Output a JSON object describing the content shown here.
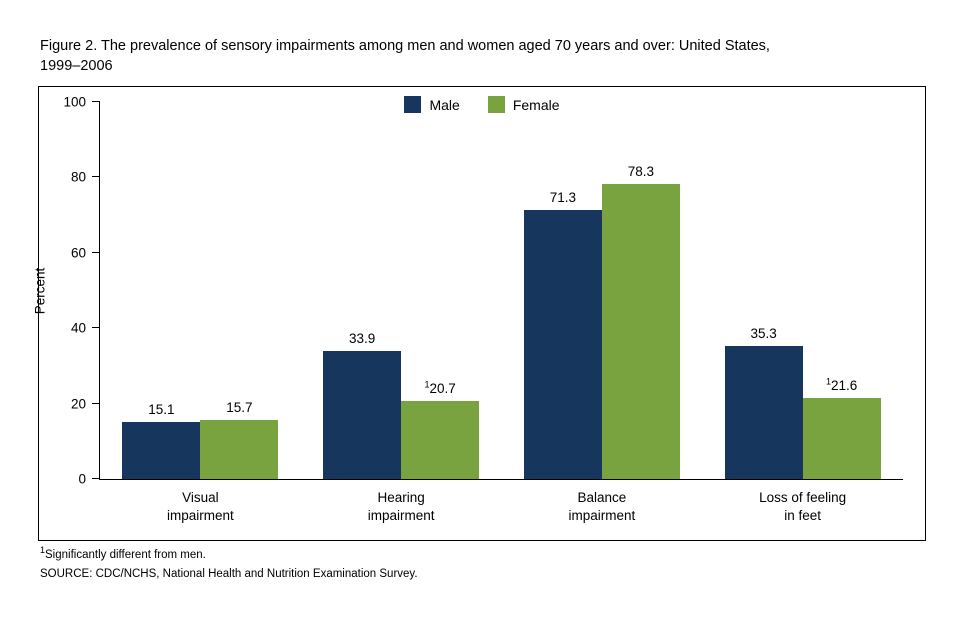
{
  "page": {
    "title_line1": "Figure 2.  The prevalence of sensory impairments among men and women aged 70 years and over: United States,",
    "title_line2": "1999–2006",
    "footnote_sup": "1",
    "footnote_text": "Significantly different from men.",
    "source": "SOURCE: CDC/NCHS, National Health and Nutrition Examination Survey."
  },
  "chart_data": {
    "type": "bar",
    "title": "Figure 2. The prevalence of sensory impairments among men and women aged 70 years and over: United States, 1999–2006",
    "xlabel": "",
    "ylabel": "Percent",
    "ylim": [
      0,
      100
    ],
    "yticks": [
      0,
      20,
      40,
      60,
      80,
      100
    ],
    "grid": false,
    "legend_position": "top-center",
    "categories": [
      {
        "line1": "Visual",
        "line2": "impairment"
      },
      {
        "line1": "Hearing",
        "line2": "impairment"
      },
      {
        "line1": "Balance",
        "line2": "impairment"
      },
      {
        "line1": "Loss of feeling",
        "line2": "in feet"
      }
    ],
    "series": [
      {
        "name": "Male",
        "color": "#16365d",
        "values": [
          15.1,
          33.9,
          71.3,
          35.3
        ],
        "labels": [
          "15.1",
          "33.9",
          "71.3",
          "35.3"
        ],
        "label_sups": [
          "",
          "",
          "",
          ""
        ]
      },
      {
        "name": "Female",
        "color": "#78a33e",
        "values": [
          15.7,
          20.7,
          78.3,
          21.6
        ],
        "labels": [
          "15.7",
          "20.7",
          "78.3",
          "21.6"
        ],
        "label_sups": [
          "",
          "1",
          "",
          "1"
        ]
      }
    ]
  }
}
